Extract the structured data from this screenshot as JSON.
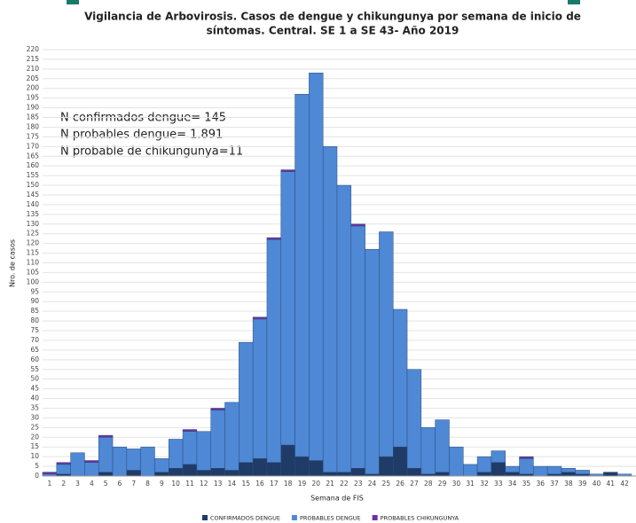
{
  "chart_data": {
    "type": "stacked_bar",
    "title": [
      "Vigilancia de Arbovirosis. Casos de dengue y chikungunya por semana de inicio de",
      "síntomas. Central. SE 1 a SE 43- Año 2019"
    ],
    "annotations": [
      "N confirmados dengue= 145",
      "N probables dengue= 1.891",
      "N probable de chikungunya=11"
    ],
    "y_label": "Nro. de casos",
    "x_label": "Semana de FIS",
    "categories": [
      "1",
      "2",
      "3",
      "4",
      "5",
      "6",
      "7",
      "8",
      "9",
      "10",
      "11",
      "12",
      "13",
      "14",
      "15",
      "16",
      "17",
      "18",
      "19",
      "20",
      "21",
      "22",
      "23",
      "24",
      "25",
      "26",
      "27",
      "28",
      "29",
      "30",
      "31",
      "32",
      "33",
      "34",
      "35",
      "36",
      "37",
      "38",
      "39",
      "40",
      "41",
      "42"
    ],
    "series": [
      {
        "name": "CONFIRMADOS DENGUE",
        "color": "#1f3b66",
        "values": [
          0,
          1,
          0,
          0,
          2,
          0,
          3,
          0,
          2,
          4,
          6,
          3,
          4,
          3,
          7,
          9,
          7,
          16,
          10,
          8,
          2,
          2,
          4,
          1,
          10,
          15,
          4,
          1,
          2,
          0,
          0,
          2,
          7,
          2,
          1,
          0,
          1,
          2,
          1,
          0,
          2,
          0
        ]
      },
      {
        "name": "PROBABLES DENGUE",
        "color": "#4f88d4",
        "values": [
          1,
          5,
          12,
          7,
          18,
          15,
          11,
          15,
          7,
          15,
          17,
          20,
          30,
          35,
          62,
          72,
          115,
          141,
          187,
          200,
          168,
          148,
          125,
          116,
          116,
          71,
          51,
          24,
          27,
          15,
          6,
          8,
          6,
          3,
          8,
          5,
          4,
          2,
          2,
          1,
          0,
          1
        ]
      },
      {
        "name": "PROBABLES CHIKUNGUNYA",
        "color": "#7030a0",
        "values": [
          1,
          1,
          0,
          1,
          1,
          0,
          0,
          0,
          0,
          0,
          1,
          0,
          1,
          0,
          0,
          1,
          1,
          1,
          0,
          0,
          0,
          0,
          1,
          0,
          0,
          0,
          0,
          0,
          0,
          0,
          0,
          0,
          0,
          0,
          1,
          0,
          0,
          0,
          0,
          0,
          0,
          0
        ]
      }
    ],
    "ylim": [
      0,
      220
    ],
    "yticks": [
      0,
      5,
      10,
      15,
      20,
      25,
      30,
      35,
      40,
      45,
      50,
      55,
      60,
      65,
      70,
      75,
      80,
      85,
      90,
      95,
      100,
      105,
      110,
      115,
      120,
      125,
      130,
      135,
      140,
      145,
      150,
      155,
      160,
      165,
      170,
      175,
      180,
      185,
      190,
      195,
      200,
      205,
      210,
      215,
      220
    ],
    "grid": true
  }
}
